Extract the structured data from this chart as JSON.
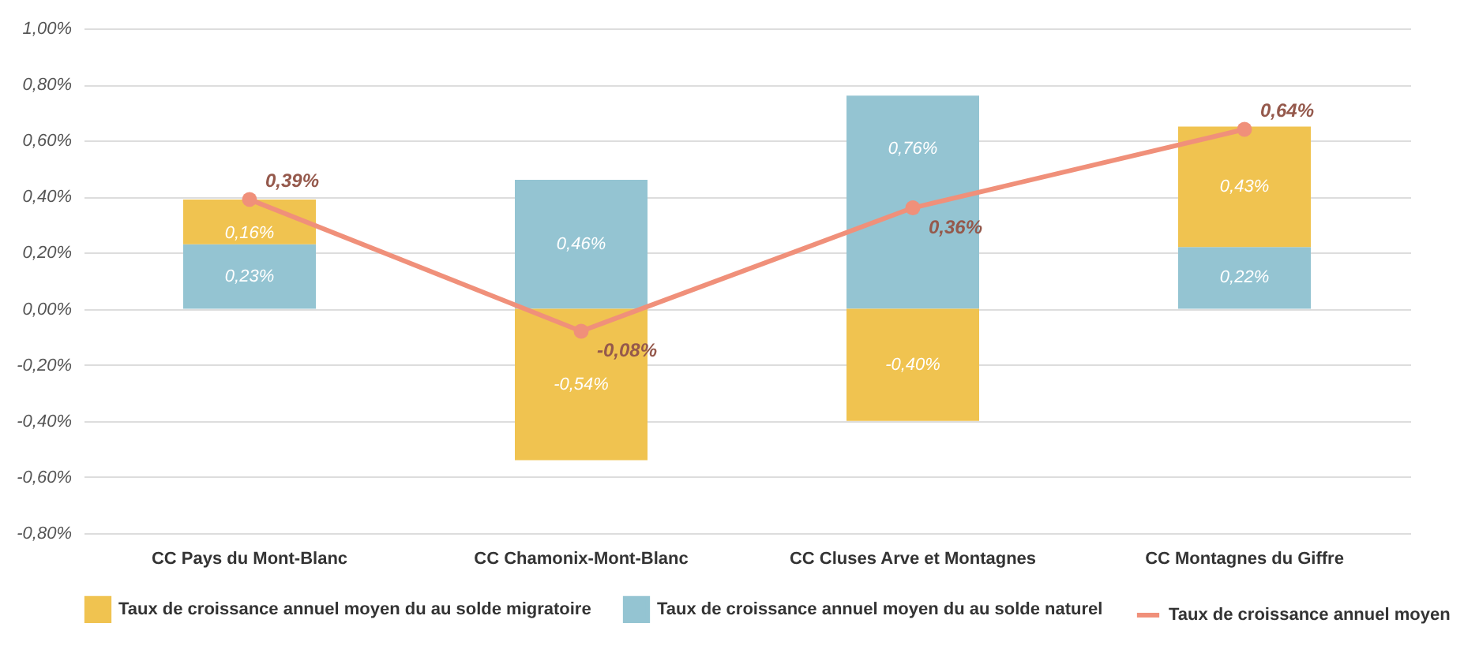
{
  "chart_data": {
    "type": "bar",
    "stacked": true,
    "categories": [
      "CC Pays du Mont-Blanc",
      "CC Chamonix-Mont-Blanc",
      "CC Cluses Arve et Montagnes",
      "CC Montagnes du Giffre"
    ],
    "series": [
      {
        "name": "Taux de croissance annuel moyen du au solde naturel",
        "color": "#94c4d2",
        "values": [
          0.23,
          0.46,
          0.76,
          0.22
        ],
        "value_labels": [
          "0,23%",
          "0,46%",
          "0,76%",
          "0,22%"
        ]
      },
      {
        "name": "Taux de croissance annuel moyen du au solde migratoire",
        "color": "#f0c350",
        "values": [
          0.16,
          -0.54,
          -0.4,
          0.43
        ],
        "value_labels": [
          "0,16%",
          "-0,54%",
          "-0,40%",
          "0,43%"
        ]
      },
      {
        "name": "Taux de croissance annuel moyen",
        "type": "line",
        "color": "#f0907a",
        "marker": "circle",
        "values": [
          0.39,
          -0.08,
          0.36,
          0.64
        ],
        "value_labels": [
          "0,39%",
          "-0,08%",
          "0,36%",
          "0,64%"
        ]
      }
    ],
    "ylim": [
      -0.8,
      1.0
    ],
    "yticks": [
      {
        "value": -0.8,
        "label": "-0,80%"
      },
      {
        "value": -0.6,
        "label": "-0,60%"
      },
      {
        "value": -0.4,
        "label": "-0,40%"
      },
      {
        "value": -0.2,
        "label": "-0,20%"
      },
      {
        "value": 0,
        "label": "0,00%"
      },
      {
        "value": 0.2,
        "label": "0,20%"
      },
      {
        "value": 0.4,
        "label": "0,40%"
      },
      {
        "value": 0.6,
        "label": "0,60%"
      },
      {
        "value": 0.8,
        "label": "0,80%"
      },
      {
        "value": 1.0,
        "label": "1,00%"
      }
    ],
    "grid": "y",
    "legend": "bottom"
  }
}
